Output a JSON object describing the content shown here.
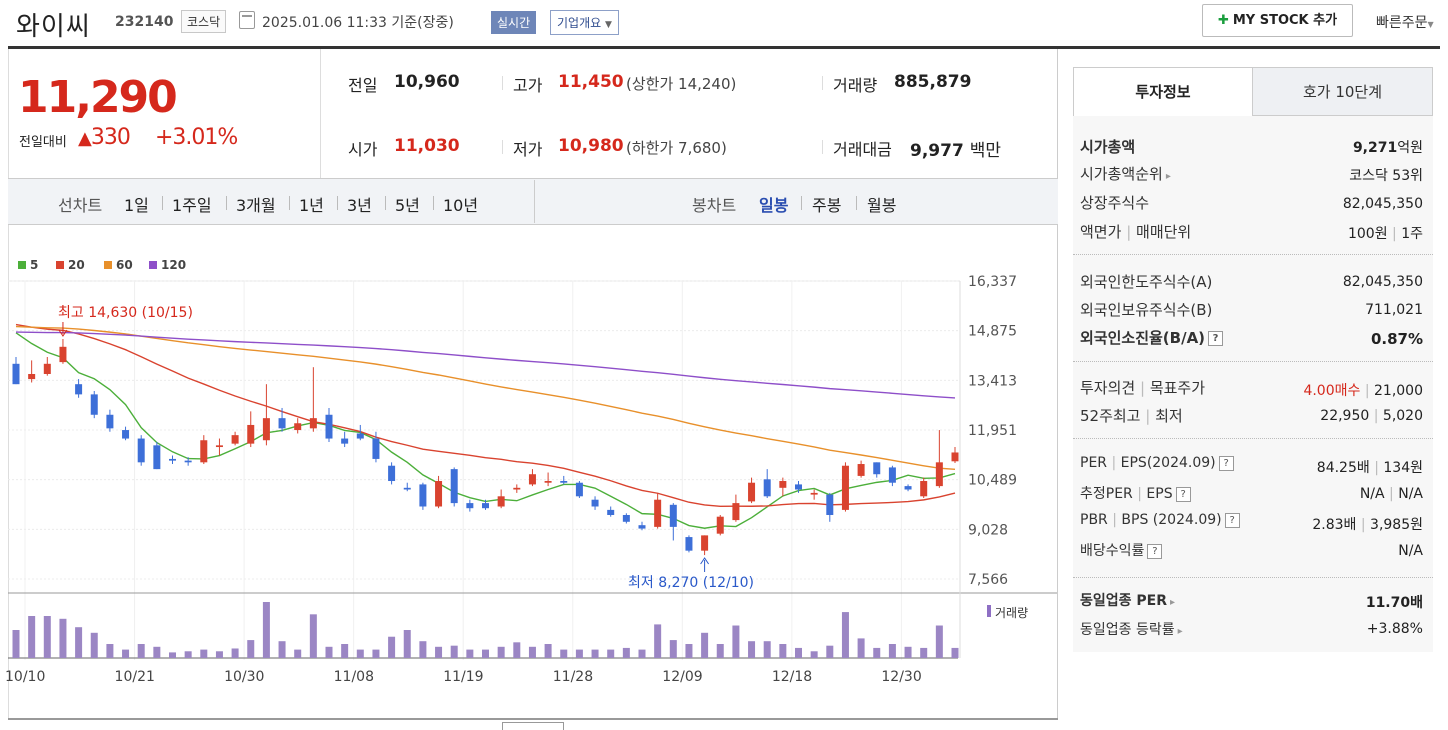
{
  "header": {
    "name": "와이씨",
    "code": "232140",
    "market": "코스닥",
    "datetime": "2025.01.06 11:33 기준(장중)",
    "realtime": "실시간",
    "corp_info": "기업개요",
    "mystock_label": "MY STOCK 추가",
    "quick_order": "빠른주문"
  },
  "price": {
    "current": "11,290",
    "change_label": "전일대비",
    "change_value": "330",
    "change_pct": "+3.01%"
  },
  "summary": {
    "prev_label": "전일",
    "prev": "10,960",
    "high_label": "고가",
    "high": "11,450",
    "upper_limit": "(상한가 14,240)",
    "volume_label": "거래량",
    "volume": "885,879",
    "open_label": "시가",
    "open": "11,030",
    "low_label": "저가",
    "low": "10,980",
    "lower_limit": "(하한가 7,680)",
    "amount_label": "거래대금",
    "amount": "9,977",
    "amount_unit": "백만"
  },
  "tabs": {
    "line_label": "선차트",
    "periods": [
      "1일",
      "1주일",
      "3개월",
      "1년",
      "3년",
      "5년",
      "10년"
    ],
    "candle_label": "봉차트",
    "candles": [
      "일봉",
      "주봉",
      "월봉"
    ]
  },
  "chart_data": {
    "type": "candlestick",
    "legend": [
      "5",
      "20",
      "60",
      "120"
    ],
    "legend_colors": [
      "#4caf3a",
      "#d9432f",
      "#e8902b",
      "#8e4fc9"
    ],
    "y_ticks": [
      "16,337",
      "14,875",
      "13,413",
      "11,951",
      "10,489",
      "9,028",
      "7,566"
    ],
    "ylim": [
      7566,
      16337
    ],
    "x_ticks": [
      "10/10",
      "10/21",
      "10/30",
      "11/08",
      "11/19",
      "11/28",
      "12/09",
      "12/18",
      "12/30"
    ],
    "max_annotation": "최고 14,630 (10/15)",
    "min_annotation": "최저 8,270 (12/10)",
    "volume_label": "거래량",
    "candles": [
      {
        "o": 13900,
        "h": 14100,
        "l": 13300,
        "c": 13300
      },
      {
        "o": 13450,
        "h": 14000,
        "l": 13350,
        "c": 13600
      },
      {
        "o": 13600,
        "h": 14100,
        "l": 13550,
        "c": 13900
      },
      {
        "o": 13950,
        "h": 14630,
        "l": 13900,
        "c": 14400
      },
      {
        "o": 13300,
        "h": 13450,
        "l": 12900,
        "c": 13000
      },
      {
        "o": 13000,
        "h": 13100,
        "l": 12300,
        "c": 12400
      },
      {
        "o": 12400,
        "h": 12550,
        "l": 11900,
        "c": 12000
      },
      {
        "o": 11950,
        "h": 12050,
        "l": 11650,
        "c": 11700
      },
      {
        "o": 11700,
        "h": 11800,
        "l": 10900,
        "c": 11000
      },
      {
        "o": 11500,
        "h": 11600,
        "l": 10800,
        "c": 10800
      },
      {
        "o": 11100,
        "h": 11200,
        "l": 10950,
        "c": 11050
      },
      {
        "o": 11050,
        "h": 11150,
        "l": 10900,
        "c": 11000
      },
      {
        "o": 11000,
        "h": 11800,
        "l": 10950,
        "c": 11650
      },
      {
        "o": 11450,
        "h": 11700,
        "l": 11200,
        "c": 11500
      },
      {
        "o": 11550,
        "h": 11900,
        "l": 11500,
        "c": 11800
      },
      {
        "o": 11550,
        "h": 12500,
        "l": 11450,
        "c": 12100
      },
      {
        "o": 11650,
        "h": 13300,
        "l": 11500,
        "c": 12300
      },
      {
        "o": 12300,
        "h": 12600,
        "l": 11900,
        "c": 12000
      },
      {
        "o": 11950,
        "h": 12300,
        "l": 11850,
        "c": 12150
      },
      {
        "o": 12000,
        "h": 13800,
        "l": 11900,
        "c": 12300
      },
      {
        "o": 12400,
        "h": 12600,
        "l": 11600,
        "c": 11700
      },
      {
        "o": 11700,
        "h": 11900,
        "l": 11450,
        "c": 11550
      },
      {
        "o": 11850,
        "h": 12100,
        "l": 11650,
        "c": 11700
      },
      {
        "o": 11700,
        "h": 11900,
        "l": 11000,
        "c": 11100
      },
      {
        "o": 10900,
        "h": 11000,
        "l": 10350,
        "c": 10450
      },
      {
        "o": 10250,
        "h": 10400,
        "l": 10150,
        "c": 10200
      },
      {
        "o": 10350,
        "h": 10400,
        "l": 9600,
        "c": 9700
      },
      {
        "o": 9700,
        "h": 10600,
        "l": 9650,
        "c": 10450
      },
      {
        "o": 10800,
        "h": 10850,
        "l": 9700,
        "c": 9800
      },
      {
        "o": 9800,
        "h": 9900,
        "l": 9550,
        "c": 9650
      },
      {
        "o": 9800,
        "h": 9900,
        "l": 9600,
        "c": 9650
      },
      {
        "o": 9700,
        "h": 10200,
        "l": 9650,
        "c": 10000
      },
      {
        "o": 10200,
        "h": 10350,
        "l": 10100,
        "c": 10250
      },
      {
        "o": 10350,
        "h": 10800,
        "l": 10300,
        "c": 10650
      },
      {
        "o": 10400,
        "h": 10700,
        "l": 10300,
        "c": 10450
      },
      {
        "o": 10450,
        "h": 10600,
        "l": 10350,
        "c": 10400
      },
      {
        "o": 10400,
        "h": 10450,
        "l": 9950,
        "c": 10000
      },
      {
        "o": 9900,
        "h": 10000,
        "l": 9600,
        "c": 9700
      },
      {
        "o": 9600,
        "h": 9700,
        "l": 9400,
        "c": 9450
      },
      {
        "o": 9450,
        "h": 9500,
        "l": 9200,
        "c": 9250
      },
      {
        "o": 9150,
        "h": 9250,
        "l": 9000,
        "c": 9050
      },
      {
        "o": 9100,
        "h": 10100,
        "l": 9050,
        "c": 9900
      },
      {
        "o": 9750,
        "h": 9800,
        "l": 8700,
        "c": 9100
      },
      {
        "o": 8800,
        "h": 8850,
        "l": 8350,
        "c": 8400
      },
      {
        "o": 8400,
        "h": 8850,
        "l": 8270,
        "c": 8850
      },
      {
        "o": 8900,
        "h": 9450,
        "l": 8850,
        "c": 9400
      },
      {
        "o": 9300,
        "h": 10050,
        "l": 9250,
        "c": 9800
      },
      {
        "o": 9850,
        "h": 10550,
        "l": 9800,
        "c": 10400
      },
      {
        "o": 10500,
        "h": 10800,
        "l": 9950,
        "c": 10000
      },
      {
        "o": 10250,
        "h": 10550,
        "l": 10000,
        "c": 10450
      },
      {
        "o": 10350,
        "h": 10450,
        "l": 10100,
        "c": 10200
      },
      {
        "o": 10050,
        "h": 10200,
        "l": 9900,
        "c": 10100
      },
      {
        "o": 10050,
        "h": 10100,
        "l": 9250,
        "c": 9450
      },
      {
        "o": 9600,
        "h": 11000,
        "l": 9550,
        "c": 10900
      },
      {
        "o": 10600,
        "h": 11050,
        "l": 10550,
        "c": 10950
      },
      {
        "o": 11000,
        "h": 11000,
        "l": 10550,
        "c": 10650
      },
      {
        "o": 10850,
        "h": 10900,
        "l": 10300,
        "c": 10400
      },
      {
        "o": 10300,
        "h": 10350,
        "l": 10150,
        "c": 10200
      },
      {
        "o": 10000,
        "h": 10550,
        "l": 9950,
        "c": 10450
      },
      {
        "o": 10300,
        "h": 11950,
        "l": 10250,
        "c": 11000
      },
      {
        "o": 11030,
        "h": 11450,
        "l": 10980,
        "c": 11290
      }
    ],
    "volume": [
      50,
      75,
      75,
      70,
      55,
      45,
      25,
      15,
      25,
      20,
      10,
      12,
      15,
      12,
      17,
      32,
      100,
      30,
      15,
      78,
      20,
      25,
      15,
      15,
      38,
      50,
      30,
      20,
      22,
      15,
      15,
      20,
      28,
      20,
      25,
      15,
      15,
      15,
      15,
      18,
      15,
      60,
      32,
      25,
      45,
      25,
      58,
      30,
      30,
      25,
      18,
      12,
      22,
      82,
      35,
      18,
      25,
      20,
      18,
      58,
      18
    ]
  },
  "right_panel": {
    "tab1": "투자정보",
    "tab2": "호가 10단계",
    "market_cap_label": "시가총액",
    "market_cap": "9,271",
    "market_cap_unit": "억원",
    "rank_label": "시가총액순위",
    "rank": "코스닥 53위",
    "shares_label": "상장주식수",
    "shares": "82,045,350",
    "face_label": "액면가",
    "trade_unit_label": "매매단위",
    "face": "100원",
    "trade_unit": "1주",
    "foreign_limit_label": "외국인한도주식수(A)",
    "foreign_limit": "82,045,350",
    "foreign_hold_label": "외국인보유주식수(B)",
    "foreign_hold": "711,021",
    "foreign_ratio_label": "외국인소진율(B/A)",
    "foreign_ratio": "0.87%",
    "opinion_label": "투자의견",
    "target_label": "목표주가",
    "opinion": "4.00매수",
    "target": "21,000",
    "w52_label": "52주최고",
    "w52_low_label": "최저",
    "w52_high": "22,950",
    "w52_low": "5,020",
    "per_label": "PER",
    "eps_label": "EPS(2024.09)",
    "per": "84.25배",
    "eps": "134원",
    "est_per_label": "추정PER",
    "est_eps_label": "EPS",
    "est_per": "N/A",
    "est_eps": "N/A",
    "pbr_label": "PBR",
    "bps_label": "BPS (2024.09)",
    "pbr": "2.83배",
    "bps": "3,985원",
    "div_label": "배당수익률",
    "div": "N/A",
    "sector_per_label": "동일업종 PER",
    "sector_per": "11.70배",
    "sector_chg_label": "동일업종 등락률",
    "sector_chg": "+3.88%"
  }
}
